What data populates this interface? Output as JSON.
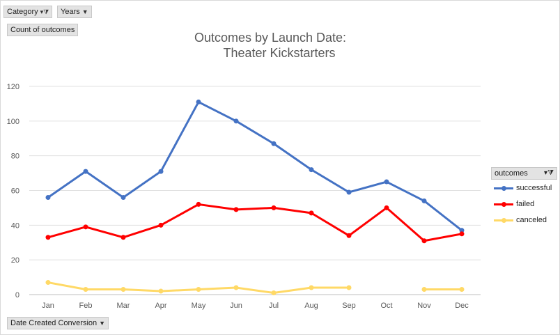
{
  "controls": {
    "category": "Category",
    "years": "Years",
    "count_field": "Count of outcomes",
    "axis_field": "Date Created Conversion"
  },
  "icons": {
    "filter": "funnel-filter-icon",
    "dropdown": "dropdown-arrow-icon"
  },
  "legend": {
    "title": "outcomes"
  },
  "chart_data": {
    "type": "line",
    "title": "Outcomes by Launch Date:",
    "subtitle": "Theater Kickstarters",
    "categories": [
      "Jan",
      "Feb",
      "Mar",
      "Apr",
      "May",
      "Jun",
      "Jul",
      "Aug",
      "Sep",
      "Oct",
      "Nov",
      "Dec"
    ],
    "ylim": [
      0,
      120
    ],
    "yticks": [
      0,
      20,
      40,
      60,
      80,
      100,
      120
    ],
    "grid": true,
    "legend_position": "right",
    "series": [
      {
        "name": "successful",
        "color": "#4472c4",
        "values": [
          56,
          71,
          56,
          71,
          111,
          100,
          87,
          72,
          59,
          65,
          54,
          37
        ]
      },
      {
        "name": "failed",
        "color": "#ff0000",
        "values": [
          33,
          39,
          33,
          40,
          52,
          49,
          50,
          47,
          34,
          50,
          31,
          35
        ]
      },
      {
        "name": "canceled",
        "color": "#ffd966",
        "values": [
          7,
          3,
          3,
          2,
          3,
          4,
          1,
          4,
          4,
          null,
          3,
          3
        ]
      }
    ]
  }
}
